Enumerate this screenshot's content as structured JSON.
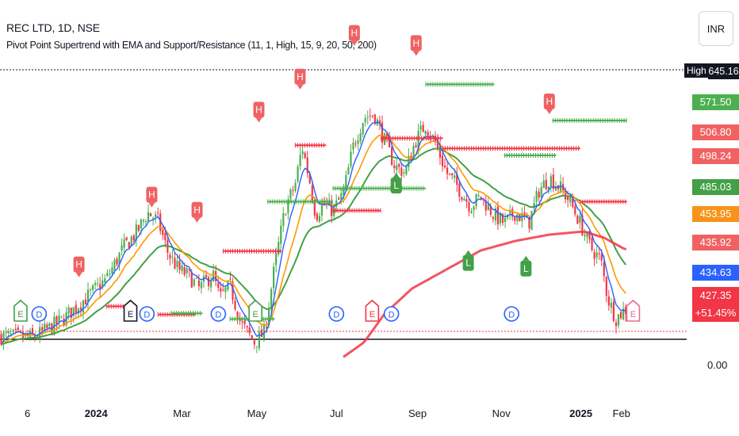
{
  "header": {
    "title": "REC LTD, 1D, NSE",
    "indicator": "Pivot Point Supertrend with EMA and Support/Resistance (11, 1, High, 15, 9, 20, 50, 200)"
  },
  "currency": "INR",
  "price_scale": {
    "high_tag": "High",
    "labels": [
      {
        "text": "645.16",
        "bg": "#131722",
        "y": 645.16
      },
      {
        "text": "571.50",
        "bg": "#4caf50",
        "y": 571.5
      },
      {
        "text": "506.80",
        "bg": "#f06262",
        "y": 506.8
      },
      {
        "text": "498.24",
        "bg": "#f06262",
        "y": 498.24
      },
      {
        "text": "485.03",
        "bg": "#43a047",
        "y": 485.03
      },
      {
        "text": "453.95",
        "bg": "#f7931a",
        "y": 453.95
      },
      {
        "text": "435.92",
        "bg": "#f06262",
        "y": 435.92
      },
      {
        "text": "434.63",
        "bg": "#2962ff",
        "y": 434.63
      }
    ],
    "last_price": {
      "price": "427.35",
      "change": "+51.45%",
      "bg": "#f23645",
      "y": 427.35
    },
    "zero": "0.00"
  },
  "colors": {
    "up": "#26a69a",
    "up_bar": "#4caf50",
    "down": "#f23645",
    "ema9": "#2962ff",
    "ema20": "#ff9800",
    "ema50": "#43a047",
    "ema200": "#f23645",
    "resistance": "#f23645",
    "support": "#4caf50",
    "high_label": "#f06262",
    "low_label": "#43a047",
    "dividend": "#2962ff",
    "earnings": "#131722"
  },
  "chart_data": {
    "type": "candlestick",
    "title": "REC LTD, 1D, NSE",
    "currency": "INR",
    "x_ticks": [
      {
        "label": "6",
        "bold": false,
        "pos": 0.04
      },
      {
        "label": "2024",
        "bold": true,
        "pos": 0.14
      },
      {
        "label": "Mar",
        "bold": false,
        "pos": 0.265
      },
      {
        "label": "May",
        "bold": false,
        "pos": 0.374
      },
      {
        "label": "Jul",
        "bold": false,
        "pos": 0.49
      },
      {
        "label": "Sep",
        "bold": false,
        "pos": 0.608
      },
      {
        "label": "Nov",
        "bold": false,
        "pos": 0.73
      },
      {
        "label": "2025",
        "bold": true,
        "pos": 0.846
      },
      {
        "label": "Feb",
        "bold": false,
        "pos": 0.905
      }
    ],
    "ylim": [
      0,
      700
    ],
    "price_path": [
      [
        0.0,
        240
      ],
      [
        0.05,
        238
      ],
      [
        0.09,
        265
      ],
      [
        0.12,
        295
      ],
      [
        0.155,
        330
      ],
      [
        0.18,
        380
      ],
      [
        0.2,
        405
      ],
      [
        0.215,
        435
      ],
      [
        0.23,
        422
      ],
      [
        0.245,
        370
      ],
      [
        0.26,
        345
      ],
      [
        0.275,
        335
      ],
      [
        0.29,
        315
      ],
      [
        0.31,
        338
      ],
      [
        0.32,
        300
      ],
      [
        0.335,
        320
      ],
      [
        0.35,
        262
      ],
      [
        0.37,
        230
      ],
      [
        0.385,
        245
      ],
      [
        0.4,
        350
      ],
      [
        0.415,
        440
      ],
      [
        0.43,
        480
      ],
      [
        0.44,
        540
      ],
      [
        0.452,
        480
      ],
      [
        0.46,
        430
      ],
      [
        0.47,
        448
      ],
      [
        0.485,
        438
      ],
      [
        0.5,
        465
      ],
      [
        0.515,
        542
      ],
      [
        0.53,
        585
      ],
      [
        0.545,
        590
      ],
      [
        0.56,
        548
      ],
      [
        0.575,
        508
      ],
      [
        0.59,
        498
      ],
      [
        0.605,
        548
      ],
      [
        0.62,
        574
      ],
      [
        0.635,
        542
      ],
      [
        0.65,
        498
      ],
      [
        0.665,
        478
      ],
      [
        0.685,
        445
      ],
      [
        0.7,
        460
      ],
      [
        0.72,
        430
      ],
      [
        0.735,
        418
      ],
      [
        0.75,
        435
      ],
      [
        0.77,
        418
      ],
      [
        0.785,
        470
      ],
      [
        0.8,
        490
      ],
      [
        0.815,
        475
      ],
      [
        0.83,
        452
      ],
      [
        0.845,
        418
      ],
      [
        0.86,
        380
      ],
      [
        0.875,
        360
      ],
      [
        0.885,
        300
      ],
      [
        0.897,
        268
      ],
      [
        0.91,
        282
      ]
    ],
    "ema200_path": [
      [
        0.5,
        207
      ],
      [
        0.53,
        230
      ],
      [
        0.56,
        275
      ],
      [
        0.6,
        315
      ],
      [
        0.65,
        345
      ],
      [
        0.7,
        375
      ],
      [
        0.75,
        390
      ],
      [
        0.8,
        400
      ],
      [
        0.85,
        405
      ],
      [
        0.88,
        395
      ],
      [
        0.91,
        377
      ]
    ],
    "resistance_lines": [
      {
        "x0": 0.155,
        "x1": 0.19,
        "y": 287
      },
      {
        "x0": 0.23,
        "x1": 0.285,
        "y": 274
      },
      {
        "x0": 0.325,
        "x1": 0.41,
        "y": 374
      },
      {
        "x0": 0.43,
        "x1": 0.475,
        "y": 541
      },
      {
        "x0": 0.485,
        "x1": 0.555,
        "y": 438
      },
      {
        "x0": 0.555,
        "x1": 0.645,
        "y": 552
      },
      {
        "x0": 0.645,
        "x1": 0.845,
        "y": 536
      },
      {
        "x0": 0.845,
        "x1": 0.913,
        "y": 452
      }
    ],
    "support_lines": [
      {
        "x0": 0.25,
        "x1": 0.295,
        "y": 276
      },
      {
        "x0": 0.335,
        "x1": 0.4,
        "y": 267
      },
      {
        "x0": 0.39,
        "x1": 0.485,
        "y": 452
      },
      {
        "x0": 0.485,
        "x1": 0.62,
        "y": 473
      },
      {
        "x0": 0.62,
        "x1": 0.72,
        "y": 637
      },
      {
        "x0": 0.735,
        "x1": 0.81,
        "y": 525
      },
      {
        "x0": 0.805,
        "x1": 0.913,
        "y": 580
      }
    ],
    "markers": [
      {
        "kind": "H",
        "pos": 0.115,
        "y": 328
      },
      {
        "kind": "H",
        "pos": 0.221,
        "y": 438
      },
      {
        "kind": "H",
        "pos": 0.287,
        "y": 414
      },
      {
        "kind": "H",
        "pos": 0.377,
        "y": 572
      },
      {
        "kind": "H",
        "pos": 0.437,
        "y": 624
      },
      {
        "kind": "H",
        "pos": 0.516,
        "y": 693
      },
      {
        "kind": "H",
        "pos": 0.606,
        "y": 677
      },
      {
        "kind": "H",
        "pos": 0.8,
        "y": 585
      },
      {
        "kind": "L",
        "pos": 0.577,
        "y": 505
      },
      {
        "kind": "L",
        "pos": 0.682,
        "y": 383
      },
      {
        "kind": "L",
        "pos": 0.766,
        "y": 374
      },
      {
        "kind": "E",
        "pos": 0.03,
        "y": 268,
        "style": "green"
      },
      {
        "kind": "D",
        "pos": 0.057,
        "y": 268,
        "style": "blue"
      },
      {
        "kind": "E",
        "pos": 0.19,
        "y": 262,
        "style": "black"
      },
      {
        "kind": "D",
        "pos": 0.214,
        "y": 262,
        "style": "blue"
      },
      {
        "kind": "D",
        "pos": 0.318,
        "y": 262,
        "style": "blue"
      },
      {
        "kind": "E",
        "pos": 0.372,
        "y": 262,
        "style": "green"
      },
      {
        "kind": "D",
        "pos": 0.49,
        "y": 262,
        "style": "blue"
      },
      {
        "kind": "E",
        "pos": 0.542,
        "y": 262,
        "style": "red"
      },
      {
        "kind": "D",
        "pos": 0.57,
        "y": 262,
        "style": "blue"
      },
      {
        "kind": "D",
        "pos": 0.745,
        "y": 262,
        "style": "blue"
      },
      {
        "kind": "E",
        "pos": 0.922,
        "y": 262,
        "style": "pink"
      }
    ]
  }
}
